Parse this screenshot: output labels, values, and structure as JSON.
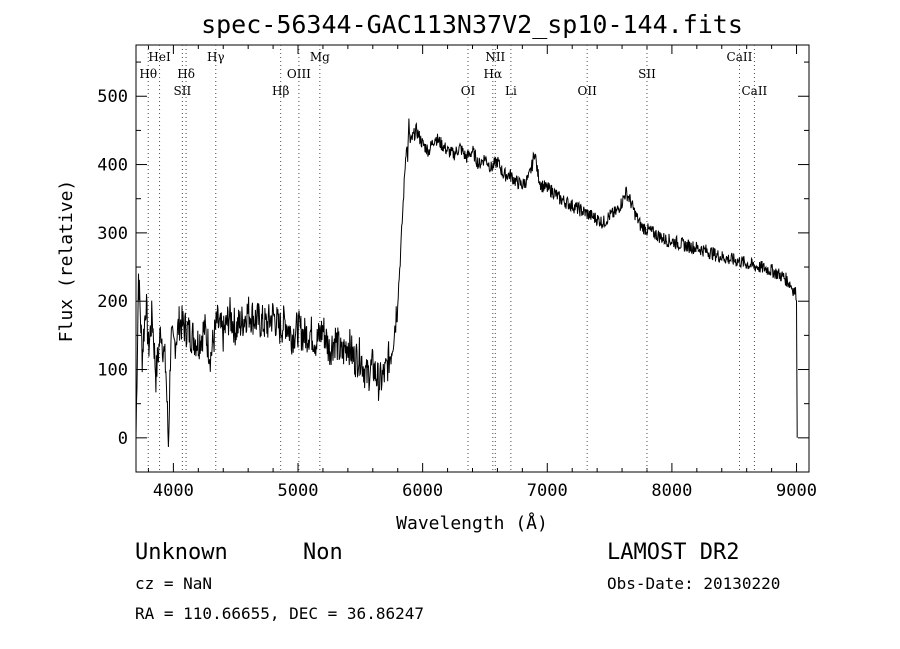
{
  "chart_data": {
    "type": "line",
    "title": "spec-56344-GAC113N37V2_sp10-144.fits",
    "xlabel": "Wavelength (Å)",
    "ylabel": "Flux (relative)",
    "xlim": [
      3700,
      9100
    ],
    "ylim": [
      -50,
      575
    ],
    "xticks": [
      4000,
      5000,
      6000,
      7000,
      8000,
      9000
    ],
    "yticks": [
      0,
      100,
      200,
      300,
      400,
      500
    ],
    "series": [
      {
        "x": [
          3700,
          3720,
          3750,
          3780,
          3800,
          3830,
          3860,
          3900,
          3940,
          3960,
          3980,
          4000,
          4050,
          4100,
          4150,
          4200,
          4250,
          4300,
          4350,
          4400,
          4450,
          4500,
          4550,
          4600,
          4650,
          4700,
          4750,
          4800,
          4850,
          4900,
          4950,
          5000,
          5050,
          5100,
          5150,
          5200,
          5250,
          5300,
          5350,
          5400,
          5450,
          5500,
          5550,
          5600,
          5650,
          5700,
          5750,
          5780,
          5800,
          5820,
          5840,
          5860,
          5870,
          5880,
          5890,
          5900,
          5920,
          5950,
          6000,
          6050,
          6100,
          6150,
          6200,
          6250,
          6300,
          6350,
          6400,
          6450,
          6500,
          6550,
          6600,
          6650,
          6700,
          6750,
          6800,
          6850,
          6880,
          6900,
          6920,
          6950,
          7000,
          7050,
          7100,
          7150,
          7200,
          7250,
          7300,
          7350,
          7400,
          7450,
          7500,
          7550,
          7600,
          7630,
          7660,
          7700,
          7750,
          7800,
          7850,
          7900,
          7950,
          8000,
          8050,
          8100,
          8150,
          8200,
          8250,
          8300,
          8350,
          8400,
          8450,
          8500,
          8550,
          8600,
          8650,
          8700,
          8750,
          8800,
          8850,
          8900,
          8950,
          8980,
          9000,
          9005
        ],
        "y": [
          0,
          240,
          120,
          200,
          130,
          180,
          90,
          160,
          100,
          -10,
          150,
          130,
          170,
          160,
          150,
          140,
          160,
          120,
          170,
          150,
          180,
          160,
          170,
          185,
          175,
          170,
          165,
          180,
          160,
          170,
          150,
          160,
          150,
          155,
          140,
          160,
          130,
          145,
          120,
          140,
          115,
          120,
          90,
          105,
          80,
          95,
          130,
          170,
          200,
          260,
          330,
          400,
          430,
          410,
          460,
          430,
          440,
          450,
          430,
          420,
          440,
          430,
          420,
          415,
          425,
          410,
          420,
          400,
          410,
          395,
          405,
          385,
          385,
          375,
          370,
          380,
          400,
          420,
          390,
          370,
          365,
          360,
          350,
          345,
          340,
          335,
          330,
          325,
          320,
          315,
          325,
          330,
          345,
          360,
          350,
          330,
          310,
          305,
          300,
          295,
          290,
          288,
          285,
          282,
          280,
          278,
          275,
          272,
          268,
          265,
          262,
          260,
          258,
          255,
          252,
          250,
          248,
          245,
          240,
          235,
          225,
          215,
          210,
          0
        ]
      }
    ],
    "lines_top": [
      {
        "label": "HeI",
        "x": 3889
      },
      {
        "label": "Hθ",
        "x": 3798
      },
      {
        "label": "Hδ",
        "x": 4102
      },
      {
        "label": "SII",
        "x": 4072
      },
      {
        "label": "Hγ",
        "x": 4340
      },
      {
        "label": "Hβ",
        "x": 4861
      },
      {
        "label": "OIII",
        "x": 5007
      },
      {
        "label": "Mg",
        "x": 5175
      },
      {
        "label": "OI",
        "x": 6364
      },
      {
        "label": "NII",
        "x": 6583
      },
      {
        "label": "Hα",
        "x": 6563
      },
      {
        "label": "Li",
        "x": 6708
      },
      {
        "label": "OII",
        "x": 7320
      },
      {
        "label": "SII",
        "x": 7800
      },
      {
        "label": "CaII",
        "x": 8542
      },
      {
        "label": "CaII",
        "x": 8662
      }
    ]
  },
  "info": {
    "object_class": "Unknown",
    "object_subclass": "Non",
    "survey": "LAMOST DR2",
    "cz": "cz = NaN",
    "obs_date": "Obs-Date: 20130220",
    "radec": "RA = 110.66655, DEC =  36.86247"
  }
}
